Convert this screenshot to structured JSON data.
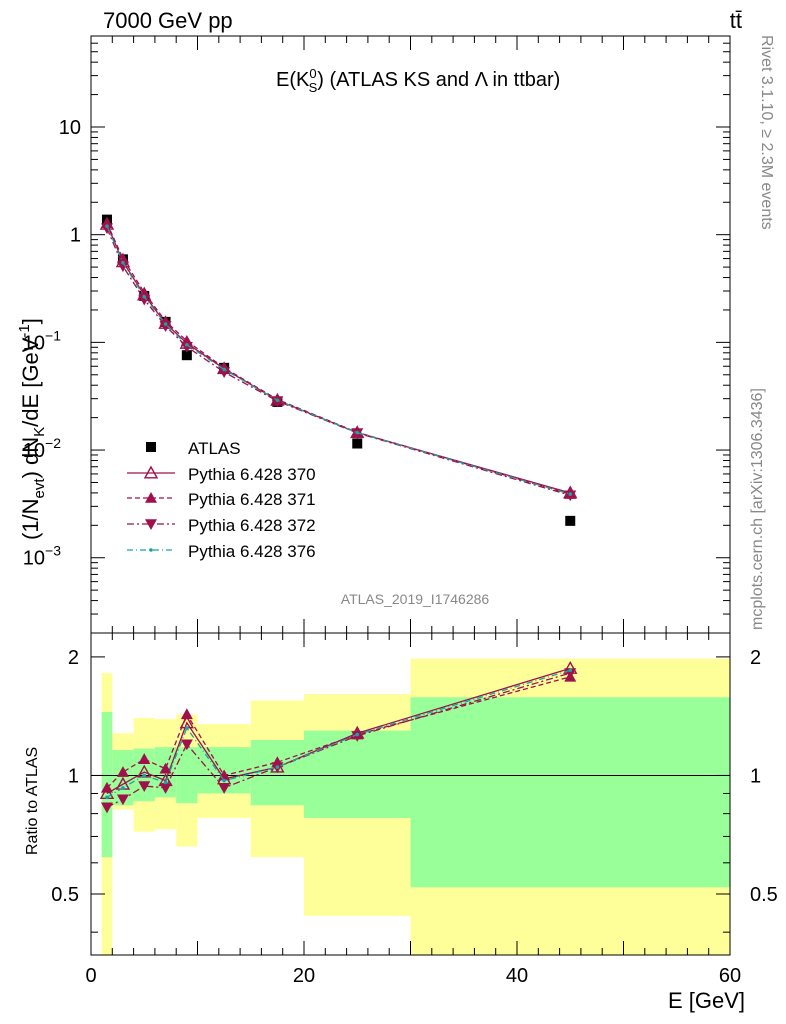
{
  "header": {
    "energy_label": "7000 GeV pp",
    "process_label": "tt̄"
  },
  "side_labels": {
    "rivet": "Rivet 3.1.10, ≥ 2.3M events",
    "mcplots": "mcplots.cern.ch [arXiv:1306.3436]"
  },
  "watermark": "ATLAS_2019_I1746286",
  "colors": {
    "data": "#000000",
    "mc": "#a0104a",
    "mc_376": "#1ba3a3",
    "band_inner": "#99ff99",
    "band_outer": "#ffff99"
  },
  "chart_data": [
    {
      "type": "scatter",
      "title_main": "E(K",
      "title_sub": "S",
      "title_sup": "0",
      "title_rest": ") (ATLAS KS and Λ in ttbar)",
      "ylabel": "(1/N_evt) dN_K/dE [GeV^-1]",
      "ylabel_parts": {
        "a": "(1/N",
        "a_sub": "evt",
        "b": ") dN",
        "b_sub": "K",
        "c": "/dE [GeV",
        "c_sup": "-1",
        "d": "]"
      },
      "xlim": [
        0,
        60
      ],
      "ylim": [
        0.0002,
        70
      ],
      "log_y": true,
      "ytick_labels": [
        {
          "value": 0.001,
          "base": "10",
          "exp": "−3"
        },
        {
          "value": 0.01,
          "base": "10",
          "exp": "−2"
        },
        {
          "value": 0.1,
          "base": "10",
          "exp": "−1"
        },
        {
          "value": 1,
          "text": "1"
        },
        {
          "value": 10,
          "text": "10"
        }
      ],
      "x": [
        1.5,
        3,
        5,
        7,
        9,
        12.5,
        17.5,
        25,
        45
      ],
      "series": [
        {
          "name": "ATLAS",
          "marker": "square",
          "values": [
            1.38,
            0.59,
            0.27,
            0.155,
            0.076,
            0.058,
            0.028,
            0.0115,
            0.0022
          ]
        },
        {
          "name": "Pythia 6.428 370",
          "marker": "open-triangle",
          "line": "solid",
          "values": [
            1.25,
            0.56,
            0.275,
            0.15,
            0.098,
            0.057,
            0.029,
            0.0145,
            0.004
          ]
        },
        {
          "name": "Pythia 6.428 371",
          "marker": "triangle",
          "line": "dashed",
          "values": [
            1.28,
            0.6,
            0.29,
            0.157,
            0.103,
            0.058,
            0.0295,
            0.0146,
            0.0039
          ]
        },
        {
          "name": "Pythia 6.428 372",
          "marker": "triangle-down",
          "line": "dashdot",
          "values": [
            1.15,
            0.51,
            0.25,
            0.142,
            0.091,
            0.053,
            0.0285,
            0.0144,
            0.0038
          ]
        },
        {
          "name": "Pythia 6.428 376",
          "marker": "dot",
          "line": "dashdot-teal",
          "values": [
            1.2,
            0.55,
            0.265,
            0.148,
            0.095,
            0.056,
            0.029,
            0.0145,
            0.0039
          ]
        }
      ]
    },
    {
      "type": "line",
      "ylabel": "Ratio to ATLAS",
      "xlabel": "E [GeV]",
      "xlim": [
        0,
        60
      ],
      "ylim": [
        0.35,
        2.3
      ],
      "x_ticks": [
        0,
        20,
        40,
        60
      ],
      "y_ticks": [
        0.5,
        1,
        2
      ],
      "y_tick_labels": [
        "0.5",
        "1",
        "2"
      ],
      "x": [
        1.5,
        3,
        5,
        7,
        9,
        12.5,
        17.5,
        25,
        45
      ],
      "bands": [
        {
          "x0": 1,
          "x1": 2,
          "inner": [
            0.62,
            1.45
          ],
          "outer": [
            0.35,
            1.82
          ]
        },
        {
          "x0": 2,
          "x1": 4,
          "inner": [
            0.84,
            1.16
          ],
          "outer": [
            0.82,
            1.28
          ]
        },
        {
          "x0": 4,
          "x1": 6,
          "inner": [
            0.86,
            1.17
          ],
          "outer": [
            0.72,
            1.4
          ]
        },
        {
          "x0": 6,
          "x1": 8,
          "inner": [
            0.88,
            1.18
          ],
          "outer": [
            0.73,
            1.39
          ]
        },
        {
          "x0": 8,
          "x1": 10,
          "inner": [
            0.85,
            1.18
          ],
          "outer": [
            0.66,
            1.43
          ]
        },
        {
          "x0": 10,
          "x1": 15,
          "inner": [
            0.9,
            1.18
          ],
          "outer": [
            0.78,
            1.35
          ]
        },
        {
          "x0": 15,
          "x1": 20,
          "inner": [
            0.84,
            1.23
          ],
          "outer": [
            0.62,
            1.55
          ]
        },
        {
          "x0": 20,
          "x1": 30,
          "inner": [
            0.78,
            1.3
          ],
          "outer": [
            0.44,
            1.61
          ]
        },
        {
          "x0": 30,
          "x1": 60,
          "inner": [
            0.52,
            1.58
          ],
          "outer": [
            0.35,
            1.98
          ]
        }
      ],
      "series": [
        {
          "name": "Pythia 6.428 370",
          "values": [
            0.9,
            0.95,
            1.02,
            0.97,
            1.36,
            0.98,
            1.05,
            1.28,
            1.87
          ]
        },
        {
          "name": "Pythia 6.428 371",
          "values": [
            0.93,
            1.02,
            1.1,
            1.04,
            1.43,
            1.0,
            1.08,
            1.27,
            1.78
          ]
        },
        {
          "name": "Pythia 6.428 372",
          "values": [
            0.83,
            0.87,
            0.94,
            0.93,
            1.2,
            0.93,
            1.05,
            1.26,
            1.82
          ]
        },
        {
          "name": "Pythia 6.428 376",
          "values": [
            0.88,
            0.93,
            1.0,
            0.96,
            1.32,
            0.97,
            1.05,
            1.27,
            1.85
          ]
        }
      ]
    }
  ]
}
